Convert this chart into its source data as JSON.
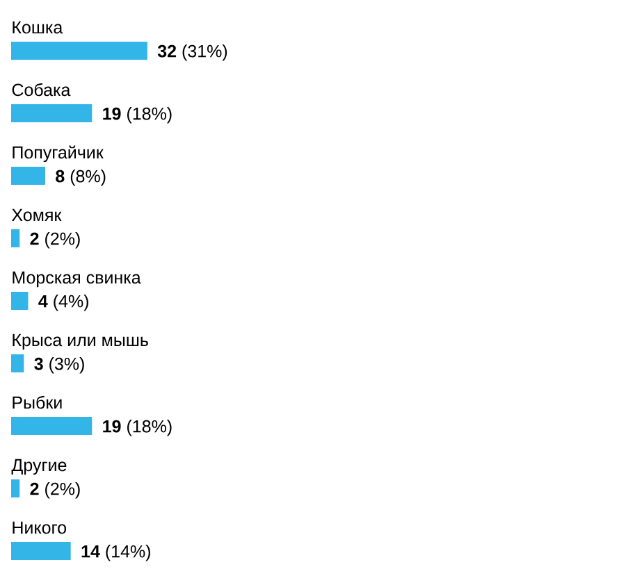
{
  "chart_data": {
    "type": "bar",
    "orientation": "horizontal",
    "categories": [
      "Кошка",
      "Собака",
      "Попугайчик",
      "Хомяк",
      "Морская свинка",
      "Крыса или мышь",
      "Рыбки",
      "Другие",
      "Никого"
    ],
    "values": [
      32,
      19,
      8,
      2,
      4,
      3,
      19,
      2,
      14
    ],
    "value_labels": [
      "**32** (31%)",
      "**19** (18%)",
      "**8** (8%)",
      "**2** (2%)",
      "**4** (4%)",
      "**3** (3%)",
      "**19** (18%)",
      "**2** (2%)",
      "**14** (14%)"
    ],
    "color": "#33b5e8"
  }
}
